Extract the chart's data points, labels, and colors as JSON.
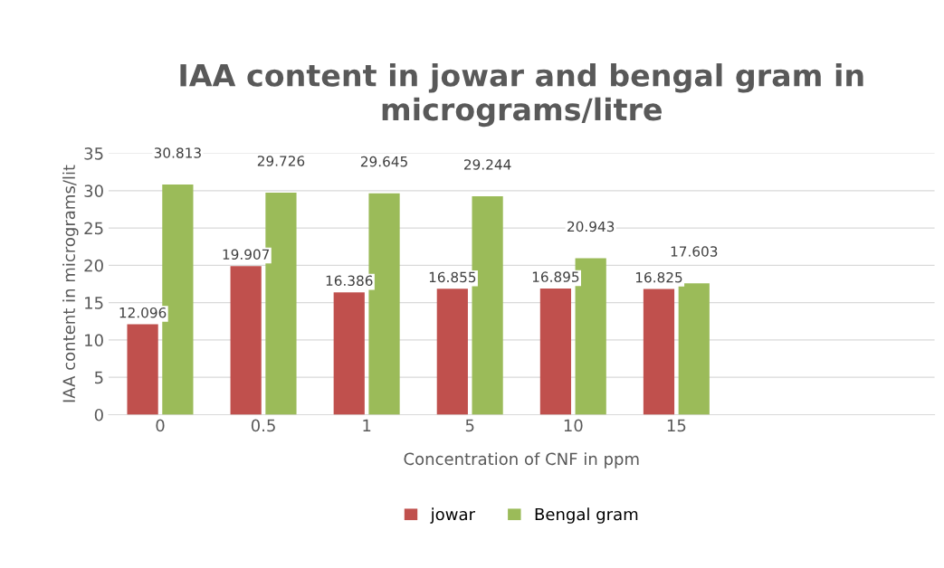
{
  "chart_data": {
    "type": "bar",
    "title": "IAA content in jowar and bengal gram in micrograms/litre",
    "xlabel": "Concentration of CNF in ppm",
    "ylabel": "IAA content in micrograms/lit",
    "categories": [
      "0",
      "0.5",
      "1",
      "5",
      "10",
      "15",
      null,
      null
    ],
    "series": [
      {
        "name": "jowar",
        "color": "#c0504d",
        "values": [
          12.096,
          19.907,
          16.386,
          16.855,
          16.895,
          16.825,
          null,
          null
        ]
      },
      {
        "name": "Bengal gram",
        "color": "#9bbb59",
        "values": [
          30.813,
          29.726,
          29.645,
          29.244,
          20.943,
          17.603,
          null,
          null
        ]
      }
    ],
    "ylim": [
      0,
      35
    ],
    "yticks": [
      0,
      5,
      10,
      15,
      20,
      25,
      30,
      35
    ],
    "grid": "y",
    "legend": "bottom",
    "data_labels": true
  }
}
